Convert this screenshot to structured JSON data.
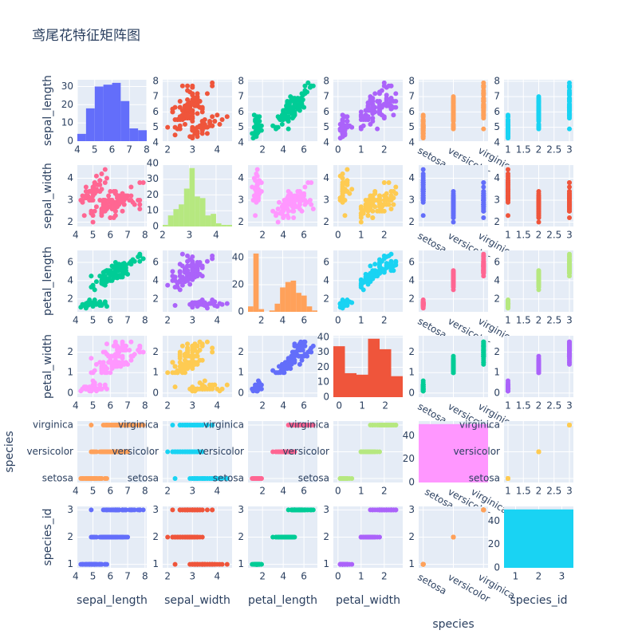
{
  "chart_data": {
    "type": "scatter_matrix",
    "title": "鸢尾花特征矩阵图",
    "colors": [
      "#636efa",
      "#EF553B",
      "#00cc96",
      "#ab63fa",
      "#FFA15A",
      "#19d3f3",
      "#FF6692",
      "#B6E880",
      "#FF97FF",
      "#FECB52"
    ],
    "dimensions": [
      {
        "name": "sepal_length",
        "lim": [
          4.1,
          8.1
        ],
        "xticks": [
          4,
          5,
          6,
          7,
          8
        ],
        "yticks": [
          4,
          5,
          6,
          7,
          8
        ],
        "values": [
          5.1,
          4.9,
          4.7,
          4.6,
          5.0,
          5.4,
          4.6,
          5.0,
          4.4,
          4.9,
          5.4,
          4.8,
          4.8,
          4.3,
          5.8,
          5.7,
          5.4,
          5.1,
          5.7,
          5.1,
          5.4,
          5.1,
          4.6,
          5.1,
          4.8,
          5.0,
          5.0,
          5.2,
          5.2,
          4.7,
          4.8,
          5.4,
          5.2,
          5.5,
          4.9,
          5.0,
          5.5,
          4.9,
          4.4,
          5.1,
          5.0,
          4.5,
          4.4,
          5.0,
          5.1,
          4.8,
          5.1,
          4.6,
          5.3,
          5.0,
          7.0,
          6.4,
          6.9,
          5.5,
          6.5,
          5.7,
          6.3,
          4.9,
          6.6,
          5.2,
          5.0,
          5.9,
          6.0,
          6.1,
          5.6,
          6.7,
          5.6,
          5.8,
          6.2,
          5.6,
          5.9,
          6.1,
          6.3,
          6.1,
          6.4,
          6.6,
          6.8,
          6.7,
          6.0,
          5.7,
          5.5,
          5.5,
          5.8,
          6.0,
          5.4,
          6.0,
          6.7,
          6.3,
          5.6,
          5.5,
          5.5,
          6.1,
          5.8,
          5.0,
          5.6,
          5.7,
          5.7,
          6.2,
          5.1,
          5.7,
          6.3,
          5.8,
          7.1,
          6.3,
          6.5,
          7.6,
          4.9,
          7.3,
          6.7,
          7.2,
          6.5,
          6.4,
          6.8,
          5.7,
          5.8,
          6.4,
          6.5,
          7.7,
          7.7,
          6.0,
          6.9,
          5.6,
          7.7,
          6.3,
          6.7,
          7.2,
          6.2,
          6.1,
          6.4,
          7.2,
          7.4,
          7.9,
          6.4,
          6.3,
          6.1,
          7.7,
          6.3,
          6.4,
          6.0,
          6.9,
          6.7,
          6.9,
          5.8,
          6.8,
          6.7,
          6.7,
          6.3,
          6.5,
          6.2,
          5.9
        ]
      },
      {
        "name": "sepal_width",
        "lim": [
          1.8,
          4.6
        ],
        "xticks": [
          2,
          3,
          4
        ],
        "yticks": [
          2,
          3,
          4
        ],
        "values": [
          3.5,
          3.0,
          3.2,
          3.1,
          3.6,
          3.9,
          3.4,
          3.4,
          2.9,
          3.1,
          3.7,
          3.4,
          3.0,
          3.0,
          4.0,
          4.4,
          3.9,
          3.5,
          3.8,
          3.8,
          3.4,
          3.7,
          3.6,
          3.3,
          3.4,
          3.0,
          3.4,
          3.5,
          3.4,
          3.2,
          3.1,
          3.4,
          4.1,
          4.2,
          3.1,
          3.2,
          3.5,
          3.1,
          3.0,
          3.4,
          3.5,
          2.3,
          3.2,
          3.5,
          3.8,
          3.0,
          3.8,
          3.2,
          3.7,
          3.3,
          3.2,
          3.2,
          3.1,
          2.3,
          2.8,
          2.8,
          3.3,
          2.4,
          2.9,
          2.7,
          2.0,
          3.0,
          2.2,
          2.9,
          2.9,
          3.1,
          3.0,
          2.7,
          2.2,
          2.5,
          3.2,
          2.8,
          2.5,
          2.8,
          2.9,
          3.0,
          2.8,
          3.0,
          2.9,
          2.6,
          2.4,
          2.4,
          2.7,
          2.7,
          3.0,
          3.4,
          3.1,
          2.3,
          3.0,
          2.5,
          2.6,
          3.0,
          2.6,
          2.3,
          2.7,
          3.0,
          2.9,
          2.9,
          2.5,
          2.8,
          3.3,
          2.7,
          3.0,
          2.9,
          3.0,
          3.0,
          2.5,
          2.9,
          2.5,
          3.6,
          3.2,
          2.7,
          3.0,
          2.5,
          2.8,
          3.2,
          3.0,
          3.8,
          2.6,
          2.2,
          3.2,
          2.8,
          2.8,
          2.7,
          3.3,
          3.2,
          2.8,
          3.0,
          2.8,
          3.0,
          2.8,
          3.8,
          2.8,
          2.8,
          2.6,
          3.0,
          3.4,
          3.1,
          3.0,
          3.1,
          3.1,
          3.1,
          2.7,
          3.2,
          3.3,
          3.0,
          2.5,
          3.0,
          3.4,
          3.0
        ]
      },
      {
        "name": "petal_length",
        "lim": [
          0.6,
          7.3
        ],
        "xticks": [
          2,
          4,
          6
        ],
        "yticks": [
          2,
          4,
          6
        ],
        "values": [
          1.4,
          1.4,
          1.3,
          1.5,
          1.4,
          1.7,
          1.4,
          1.5,
          1.4,
          1.5,
          1.5,
          1.6,
          1.4,
          1.1,
          1.2,
          1.5,
          1.3,
          1.4,
          1.7,
          1.5,
          1.7,
          1.5,
          1.0,
          1.7,
          1.9,
          1.6,
          1.6,
          1.5,
          1.4,
          1.6,
          1.6,
          1.5,
          1.5,
          1.4,
          1.5,
          1.2,
          1.3,
          1.5,
          1.3,
          1.5,
          1.3,
          1.3,
          1.3,
          1.6,
          1.9,
          1.4,
          1.6,
          1.4,
          1.5,
          1.4,
          4.7,
          4.5,
          4.9,
          4.0,
          4.6,
          4.5,
          4.7,
          3.3,
          4.6,
          3.9,
          3.5,
          4.2,
          4.0,
          4.7,
          3.6,
          4.4,
          4.5,
          4.1,
          4.5,
          3.9,
          4.8,
          4.0,
          4.9,
          4.7,
          4.3,
          4.4,
          4.8,
          5.0,
          4.5,
          3.5,
          3.8,
          3.7,
          3.9,
          5.1,
          4.5,
          4.5,
          4.7,
          4.4,
          4.1,
          4.0,
          4.4,
          4.6,
          4.0,
          3.3,
          4.2,
          4.2,
          4.2,
          4.3,
          3.0,
          4.1,
          6.0,
          5.1,
          5.9,
          5.6,
          5.8,
          6.6,
          4.5,
          6.3,
          5.8,
          6.1,
          5.1,
          5.3,
          5.5,
          5.0,
          5.1,
          5.3,
          5.5,
          6.7,
          6.9,
          5.0,
          5.7,
          4.9,
          6.7,
          4.9,
          5.7,
          6.0,
          4.8,
          4.9,
          5.6,
          5.8,
          6.1,
          6.4,
          5.6,
          5.1,
          5.6,
          6.1,
          5.6,
          5.5,
          4.8,
          5.4,
          5.6,
          5.1,
          5.1,
          5.9,
          5.7,
          5.2,
          5.0,
          5.2,
          5.4,
          5.1
        ]
      },
      {
        "name": "petal_width",
        "lim": [
          -0.2,
          2.8
        ],
        "xticks": [
          0,
          1,
          2
        ],
        "yticks": [
          0,
          1,
          2
        ],
        "values": [
          0.2,
          0.2,
          0.2,
          0.2,
          0.2,
          0.4,
          0.3,
          0.2,
          0.2,
          0.1,
          0.2,
          0.2,
          0.1,
          0.1,
          0.2,
          0.4,
          0.4,
          0.3,
          0.3,
          0.3,
          0.2,
          0.4,
          0.2,
          0.5,
          0.2,
          0.2,
          0.4,
          0.2,
          0.2,
          0.2,
          0.2,
          0.4,
          0.1,
          0.2,
          0.1,
          0.2,
          0.2,
          0.1,
          0.2,
          0.2,
          0.3,
          0.3,
          0.2,
          0.6,
          0.4,
          0.3,
          0.2,
          0.2,
          0.2,
          0.2,
          1.4,
          1.5,
          1.5,
          1.3,
          1.5,
          1.3,
          1.6,
          1.0,
          1.3,
          1.4,
          1.0,
          1.5,
          1.0,
          1.4,
          1.3,
          1.4,
          1.5,
          1.0,
          1.5,
          1.1,
          1.8,
          1.3,
          1.5,
          1.2,
          1.3,
          1.4,
          1.4,
          1.7,
          1.5,
          1.0,
          1.1,
          1.0,
          1.2,
          1.6,
          1.5,
          1.6,
          1.5,
          1.3,
          1.3,
          1.3,
          1.2,
          1.4,
          1.2,
          1.0,
          1.3,
          1.2,
          1.3,
          1.3,
          1.1,
          1.3,
          2.5,
          1.9,
          2.1,
          1.8,
          2.2,
          2.1,
          1.7,
          1.8,
          1.8,
          2.5,
          2.0,
          1.9,
          2.1,
          2.0,
          2.4,
          2.3,
          1.8,
          2.2,
          2.3,
          1.5,
          2.3,
          2.0,
          2.0,
          1.8,
          2.1,
          1.8,
          1.8,
          1.8,
          2.1,
          1.6,
          1.9,
          2.0,
          2.2,
          1.5,
          1.4,
          2.3,
          2.4,
          1.8,
          1.8,
          2.1,
          2.4,
          2.3,
          1.9,
          2.3,
          2.5,
          2.3,
          1.9,
          2.0,
          2.3,
          1.8
        ]
      },
      {
        "name": "species",
        "categories": [
          "setosa",
          "versicolor",
          "virginica"
        ],
        "values": [
          "setosa",
          "setosa",
          "setosa",
          "setosa",
          "setosa",
          "setosa",
          "setosa",
          "setosa",
          "setosa",
          "setosa",
          "setosa",
          "setosa",
          "setosa",
          "setosa",
          "setosa",
          "setosa",
          "setosa",
          "setosa",
          "setosa",
          "setosa",
          "setosa",
          "setosa",
          "setosa",
          "setosa",
          "setosa",
          "setosa",
          "setosa",
          "setosa",
          "setosa",
          "setosa",
          "setosa",
          "setosa",
          "setosa",
          "setosa",
          "setosa",
          "setosa",
          "setosa",
          "setosa",
          "setosa",
          "setosa",
          "setosa",
          "setosa",
          "setosa",
          "setosa",
          "setosa",
          "setosa",
          "setosa",
          "setosa",
          "setosa",
          "setosa",
          "versicolor",
          "versicolor",
          "versicolor",
          "versicolor",
          "versicolor",
          "versicolor",
          "versicolor",
          "versicolor",
          "versicolor",
          "versicolor",
          "versicolor",
          "versicolor",
          "versicolor",
          "versicolor",
          "versicolor",
          "versicolor",
          "versicolor",
          "versicolor",
          "versicolor",
          "versicolor",
          "versicolor",
          "versicolor",
          "versicolor",
          "versicolor",
          "versicolor",
          "versicolor",
          "versicolor",
          "versicolor",
          "versicolor",
          "versicolor",
          "versicolor",
          "versicolor",
          "versicolor",
          "versicolor",
          "versicolor",
          "versicolor",
          "versicolor",
          "versicolor",
          "versicolor",
          "versicolor",
          "versicolor",
          "versicolor",
          "versicolor",
          "versicolor",
          "versicolor",
          "versicolor",
          "versicolor",
          "versicolor",
          "versicolor",
          "versicolor",
          "virginica",
          "virginica",
          "virginica",
          "virginica",
          "virginica",
          "virginica",
          "virginica",
          "virginica",
          "virginica",
          "virginica",
          "virginica",
          "virginica",
          "virginica",
          "virginica",
          "virginica",
          "virginica",
          "virginica",
          "virginica",
          "virginica",
          "virginica",
          "virginica",
          "virginica",
          "virginica",
          "virginica",
          "virginica",
          "virginica",
          "virginica",
          "virginica",
          "virginica",
          "virginica",
          "virginica",
          "virginica",
          "virginica",
          "virginica",
          "virginica",
          "virginica",
          "virginica",
          "virginica",
          "virginica",
          "virginica",
          "virginica",
          "virginica",
          "virginica",
          "virginica",
          "virginica",
          "virginica",
          "virginica",
          "virginica",
          "virginica",
          "virginica"
        ]
      },
      {
        "name": "species_id",
        "lim": [
          0.87,
          3.13
        ],
        "xticks": [
          1,
          1.5,
          2,
          2.5,
          3
        ],
        "yticks": [
          1,
          2,
          3
        ],
        "values": [
          1,
          1,
          1,
          1,
          1,
          1,
          1,
          1,
          1,
          1,
          1,
          1,
          1,
          1,
          1,
          1,
          1,
          1,
          1,
          1,
          1,
          1,
          1,
          1,
          1,
          1,
          1,
          1,
          1,
          1,
          1,
          1,
          1,
          1,
          1,
          1,
          1,
          1,
          1,
          1,
          1,
          1,
          1,
          1,
          1,
          1,
          1,
          1,
          1,
          1,
          2,
          2,
          2,
          2,
          2,
          2,
          2,
          2,
          2,
          2,
          2,
          2,
          2,
          2,
          2,
          2,
          2,
          2,
          2,
          2,
          2,
          2,
          2,
          2,
          2,
          2,
          2,
          2,
          2,
          2,
          2,
          2,
          2,
          2,
          2,
          2,
          2,
          2,
          2,
          2,
          2,
          2,
          2,
          2,
          2,
          2,
          2,
          2,
          2,
          2,
          3,
          3,
          3,
          3,
          3,
          3,
          3,
          3,
          3,
          3,
          3,
          3,
          3,
          3,
          3,
          3,
          3,
          3,
          3,
          3,
          3,
          3,
          3,
          3,
          3,
          3,
          3,
          3,
          3,
          3,
          3,
          3,
          3,
          3,
          3,
          3,
          3,
          3,
          3,
          3,
          3,
          3,
          3,
          3,
          3,
          3,
          3,
          3,
          3,
          3
        ]
      }
    ],
    "histograms": [
      {
        "bins": [
          4,
          4.5,
          5,
          5.5,
          6,
          6.5,
          7,
          7.5,
          8
        ],
        "counts": [
          4,
          18,
          30,
          31,
          32,
          22,
          7,
          6
        ],
        "xlim": [
          4,
          8
        ],
        "xticks": [
          4,
          5,
          6,
          7,
          8
        ],
        "ylim": [
          0,
          33.7
        ],
        "yticks": [
          0,
          10,
          20,
          30
        ]
      },
      {
        "bins": [
          2,
          2.2,
          2.4,
          2.6,
          2.8,
          3,
          3.2,
          3.4,
          3.6,
          3.8,
          4,
          4.2,
          4.4,
          4.6
        ],
        "counts": [
          1,
          7,
          11,
          14,
          24,
          37,
          19,
          18,
          7,
          8,
          2,
          1,
          1
        ],
        "xlim": [
          2,
          4.6
        ],
        "xticks": [
          2,
          3,
          4
        ],
        "ylim": [
          0,
          38.9
        ],
        "yticks": [
          0,
          10,
          20,
          30,
          40
        ]
      },
      {
        "bins": [
          0.75,
          1.25,
          1.75,
          2.25,
          2.75,
          3.25,
          3.75,
          4.25,
          4.75,
          5.25,
          5.75,
          6.25,
          6.75,
          7.25
        ],
        "counts": [
          4,
          43,
          2,
          0,
          1,
          6,
          18,
          22,
          23,
          14,
          12,
          4,
          1
        ],
        "xlim": [
          0.75,
          7.25
        ],
        "xticks": [
          2,
          4,
          6
        ],
        "ylim": [
          0,
          45.3
        ],
        "yticks": [
          0,
          20,
          40
        ]
      },
      {
        "bins": [
          -0.25,
          0.25,
          0.75,
          1.25,
          1.75,
          2.25,
          2.75
        ],
        "counts": [
          34,
          16,
          15,
          39,
          32,
          14
        ],
        "xlim": [
          -0.25,
          2.75
        ],
        "xticks": [
          0,
          1,
          2
        ],
        "ylim": [
          0,
          41
        ],
        "yticks": [
          0,
          10,
          20,
          30,
          40
        ]
      },
      {
        "counts": [
          50,
          50,
          50
        ],
        "ylim": [
          0,
          52.6
        ],
        "yticks": [
          0,
          20,
          40
        ]
      },
      {
        "bins": [
          0.5,
          1.5,
          2.5,
          3.5
        ],
        "counts": [
          50,
          50,
          50
        ],
        "xlim": [
          0.5,
          3.5
        ],
        "xticks": [
          1,
          2,
          3
        ],
        "ylim": [
          0,
          52.6
        ],
        "yticks": [
          0,
          20,
          40
        ]
      }
    ]
  }
}
